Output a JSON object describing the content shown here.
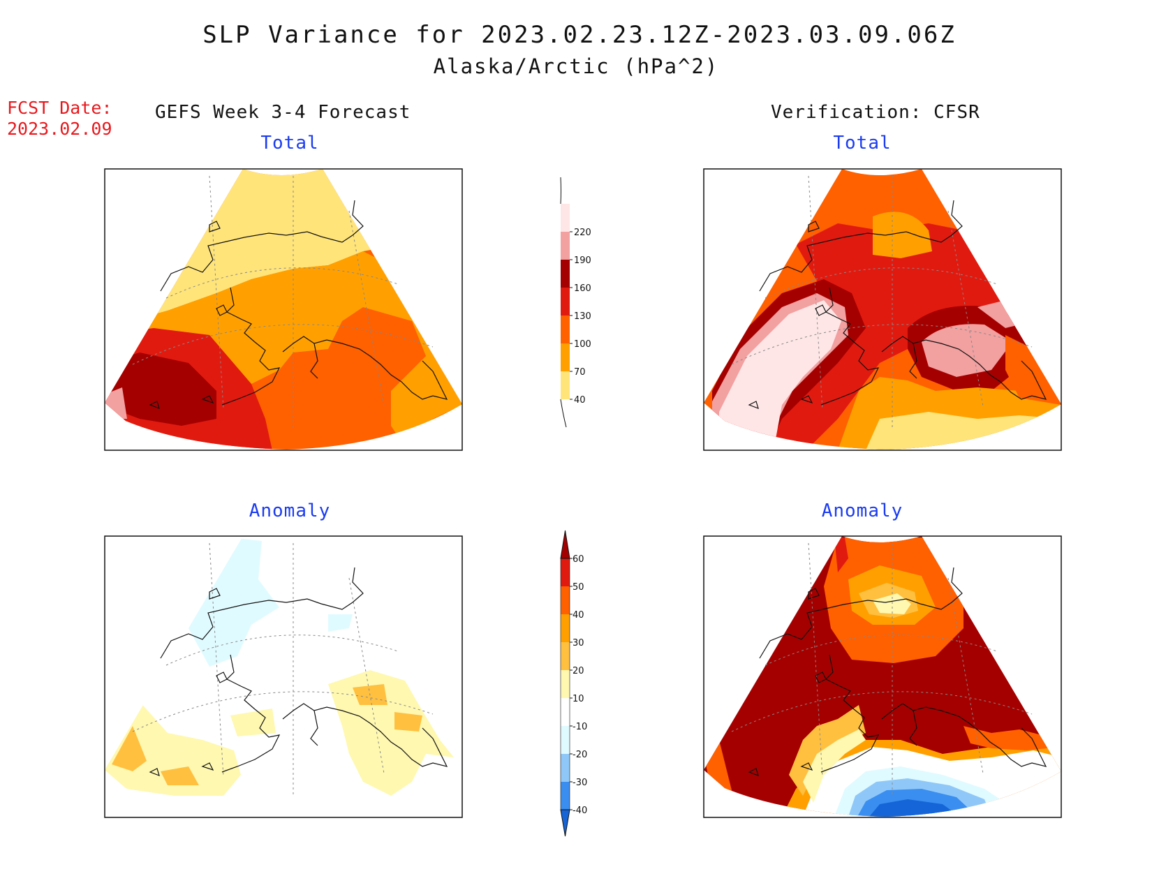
{
  "title": {
    "line1": "SLP Variance for 2023.02.23.12Z-2023.03.09.06Z",
    "line2": "Alaska/Arctic (hPa^2)"
  },
  "forecast": {
    "label": "FCST Date:",
    "date": "2023.02.09"
  },
  "left_column": {
    "heading": "GEFS Week 3-4 Forecast"
  },
  "right_column": {
    "heading": "Verification: CFSR"
  },
  "panels": {
    "gefs_total": {
      "title": "Total"
    },
    "cfsr_total": {
      "title": "Total"
    },
    "gefs_anomaly": {
      "title": "Anomaly"
    },
    "cfsr_anomaly": {
      "title": "Anomaly"
    }
  },
  "total_colorbar": {
    "ticks": [
      "40",
      "70",
      "100",
      "130",
      "160",
      "190",
      "220"
    ],
    "colors": [
      "#ffe47a",
      "#ffa000",
      "#ff6000",
      "#e11a10",
      "#a50000",
      "#f2a0a0",
      "#ffe6e6"
    ]
  },
  "anomaly_colorbar": {
    "ticks": [
      "-40",
      "-30",
      "-20",
      "-10",
      "10",
      "20",
      "30",
      "40",
      "50",
      "60"
    ],
    "colors": [
      "#1565d8",
      "#3a8ef0",
      "#8fc8f8",
      "#e0fbff",
      "#ffffff",
      "#fff8b0",
      "#ffc040",
      "#ffa000",
      "#ff6000",
      "#e11a10",
      "#a50000"
    ]
  },
  "palette": {
    "c40": "#ffe47a",
    "c70": "#ffa000",
    "c100": "#ff6000",
    "c130": "#e11a10",
    "c160": "#a50000",
    "c190": "#f2a0a0",
    "c220": "#ffe6e6",
    "a_neg10": "#e0fbff",
    "a_neg20": "#8fc8f8",
    "a_neg30": "#3a8ef0",
    "a_neg40": "#1565d8",
    "a10": "#fff8b0",
    "a20": "#ffc040",
    "a30": "#ffa000",
    "a40": "#ff6000",
    "a50": "#e11a10",
    "a60": "#a50000"
  }
}
